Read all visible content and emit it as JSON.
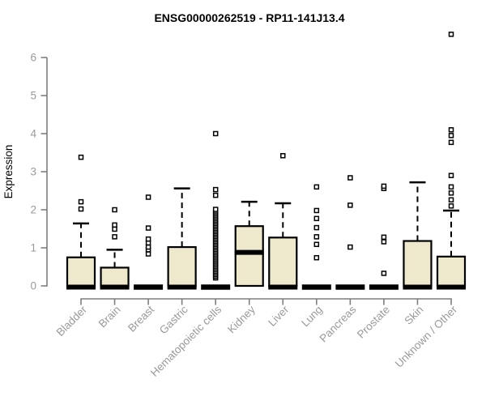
{
  "title": "ENSG00000262519 - RP11-141J13.4",
  "chart_data": {
    "type": "box",
    "title": "ENSG00000262519 - RP11-141J13.4",
    "xlabel": "",
    "ylabel": "Expression",
    "ylim": [
      0,
      6.8
    ],
    "yticks": [
      0,
      1,
      2,
      3,
      4,
      5,
      6
    ],
    "grid": false,
    "legend": null,
    "colors": {
      "box_fill": "#EEE8CD",
      "box_stroke": "#000000",
      "axis_line": "#7f7f7f",
      "tick_label": "#9a9a9a",
      "title": "#000000"
    },
    "categories": [
      "Bladder",
      "Brain",
      "Breast",
      "Gastric",
      "Hematopoietic cells",
      "Kidney",
      "Liver",
      "Lung",
      "Pancreas",
      "Prostate",
      "Skin",
      "Unknown / Other"
    ],
    "boxes": [
      {
        "label": "Bladder",
        "q1": 0,
        "median": 0,
        "q3": 0.75,
        "whisker_low": 0,
        "whisker_high": 1.64,
        "outliers": [
          2.02,
          2.21,
          3.38
        ]
      },
      {
        "label": "Brain",
        "q1": 0,
        "median": 0,
        "q3": 0.48,
        "whisker_low": 0,
        "whisker_high": 0.95,
        "outliers": [
          1.29,
          1.49,
          1.6,
          2.0
        ]
      },
      {
        "label": "Breast",
        "q1": 0,
        "median": 0,
        "q3": 0,
        "whisker_low": 0,
        "whisker_high": 0,
        "outliers": [
          0.84,
          0.95,
          1.02,
          1.13,
          1.23,
          1.52,
          2.33
        ]
      },
      {
        "label": "Gastric",
        "q1": 0,
        "median": 0,
        "q3": 1.02,
        "whisker_low": 0,
        "whisker_high": 2.56,
        "outliers": []
      },
      {
        "label": "Hematopoietic cells",
        "q1": 0,
        "median": 0,
        "q3": 0,
        "whisker_low": 0,
        "whisker_high": 0,
        "outliers": [
          2.38,
          2.53,
          4.0
        ],
        "outlier_band": {
          "min": 0.21,
          "max": 2.01,
          "count": 44
        }
      },
      {
        "label": "Kidney",
        "q1": 0,
        "median": 0.88,
        "q3": 1.57,
        "whisker_low": 0,
        "whisker_high": 2.21,
        "outliers": []
      },
      {
        "label": "Liver",
        "q1": 0,
        "median": 0,
        "q3": 1.27,
        "whisker_low": 0,
        "whisker_high": 2.17,
        "outliers": [
          3.42
        ]
      },
      {
        "label": "Lung",
        "q1": 0,
        "median": 0,
        "q3": 0,
        "whisker_low": 0,
        "whisker_high": 0,
        "outliers": [
          0.74,
          1.09,
          1.29,
          1.53,
          1.77,
          1.98,
          2.6
        ]
      },
      {
        "label": "Pancreas",
        "q1": 0,
        "median": 0,
        "q3": 0,
        "whisker_low": 0,
        "whisker_high": 0,
        "outliers": [
          1.02,
          2.12,
          2.84
        ]
      },
      {
        "label": "Prostate",
        "q1": 0,
        "median": 0,
        "q3": 0,
        "whisker_low": 0,
        "whisker_high": 0,
        "outliers": [
          0.33,
          1.16,
          1.28,
          2.56,
          2.62
        ]
      },
      {
        "label": "Skin",
        "q1": 0,
        "median": 0,
        "q3": 1.18,
        "whisker_low": 0,
        "whisker_high": 2.72,
        "outliers": []
      },
      {
        "label": "Unknown / Other",
        "q1": 0,
        "median": 0,
        "q3": 0.77,
        "whisker_low": 0,
        "whisker_high": 1.98,
        "outliers": [
          2.1,
          2.26,
          2.44,
          2.6,
          2.9,
          3.77,
          3.95,
          4.1,
          6.61
        ]
      }
    ]
  }
}
